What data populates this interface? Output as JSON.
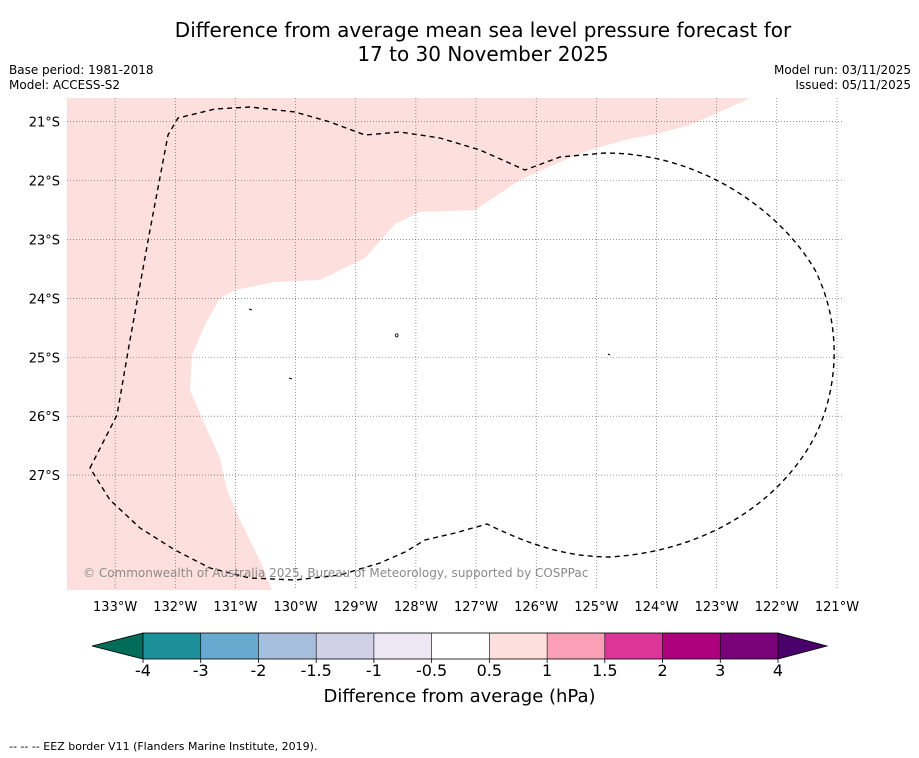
{
  "title": {
    "line1": "Difference from average mean sea level pressure forecast for",
    "line2": "17 to 30 November 2025"
  },
  "meta": {
    "base_period": "Base period: 1981-2018",
    "model": "Model: ACCESS-S2",
    "model_run": "Model run: 03/11/2025",
    "issued": "Issued: 05/11/2025"
  },
  "map": {
    "lon_range": [
      -133.8,
      -120.9
    ],
    "lat_range": [
      -28.95,
      -20.6
    ],
    "lon_ticks": [
      -133,
      -132,
      -131,
      -130,
      -129,
      -128,
      -127,
      -126,
      -125,
      -124,
      -123,
      -122,
      -121
    ],
    "lon_tick_labels": [
      "133°W",
      "132°W",
      "131°W",
      "130°W",
      "129°W",
      "128°W",
      "127°W",
      "126°W",
      "125°W",
      "124°W",
      "123°W",
      "122°W",
      "121°W"
    ],
    "lat_ticks": [
      -21,
      -22,
      -23,
      -24,
      -25,
      -26,
      -27
    ],
    "lat_tick_labels": [
      "21°S",
      "22°S",
      "23°S",
      "24°S",
      "25°S",
      "26°S",
      "27°S"
    ],
    "anomaly_fill_color": "#fde0dd",
    "anomaly_band": "0.5 to 1",
    "copyright": "© Commonwealth of Australia 2025, Bureau of Meteorology, supported by COSPPac"
  },
  "chart_data": {
    "type": "heatmap",
    "title": "Difference from average mean sea level pressure forecast for 17 to 30 November 2025",
    "colorbar": {
      "label": "Difference from average (hPa)",
      "tick_labels": [
        "-4",
        "-3",
        "-2",
        "-1.5",
        "-1",
        "-0.5",
        "0.5",
        "1",
        "1.5",
        "2",
        "3",
        "4"
      ],
      "bins": [
        {
          "range": "-4 to -3",
          "color": "#1c9099"
        },
        {
          "range": "-3 to -2",
          "color": "#67a9cf"
        },
        {
          "range": "-2 to -1.5",
          "color": "#a6bddb"
        },
        {
          "range": "-1.5 to -1",
          "color": "#d0d1e6"
        },
        {
          "range": "-1 to -0.5",
          "color": "#ece7f2"
        },
        {
          "range": "-0.5 to 0.5",
          "color": "#ffffff"
        },
        {
          "range": "0.5 to 1",
          "color": "#fde0dd"
        },
        {
          "range": "1 to 1.5",
          "color": "#fa9fb5"
        },
        {
          "range": "1.5 to 2",
          "color": "#dd3497"
        },
        {
          "range": "2 to 3",
          "color": "#ae017e"
        },
        {
          "range": "3 to 4",
          "color": "#7a0177"
        }
      ],
      "under_color": "#016c59",
      "over_color": "#49006a"
    },
    "regions": [
      {
        "value_range": "0.5 to 1",
        "location": "north-west and west of domain"
      },
      {
        "value_range": "-0.5 to 0.5",
        "location": "centre, south and east of domain"
      }
    ]
  },
  "footer": {
    "legend": "--  --  -- EEZ border V11 (Flanders Marine Institute, 2019)."
  }
}
